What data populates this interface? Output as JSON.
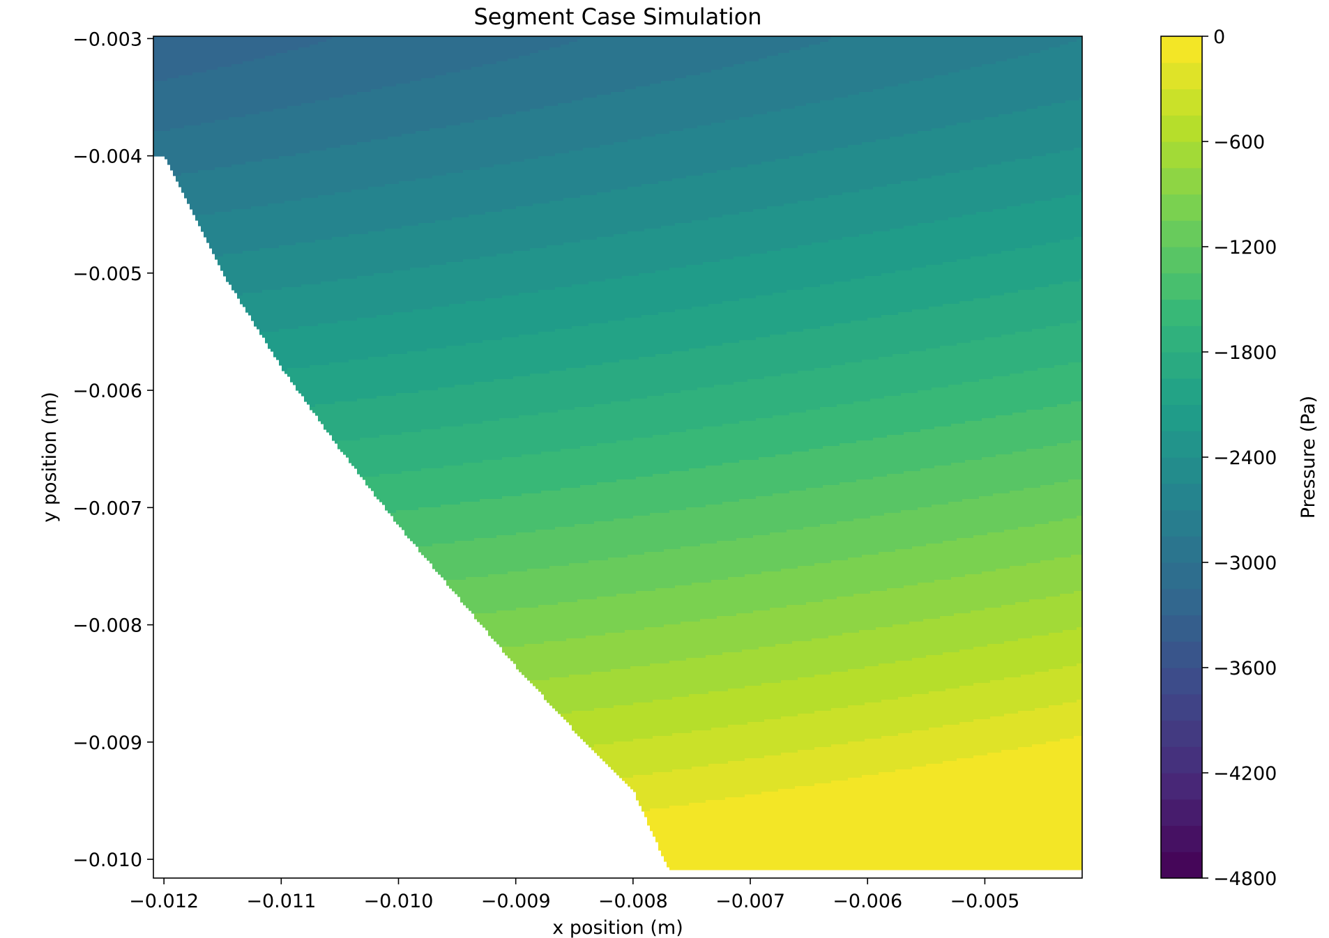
{
  "chart_data": {
    "type": "heatmap",
    "subtype": "filled-contour",
    "title": "Segment Case Simulation",
    "xlabel": "x position (m)",
    "ylabel": "y position (m)",
    "xlim": [
      -0.01209,
      -0.00417
    ],
    "ylim": [
      -0.01016,
      -0.00298
    ],
    "x_ticks": [
      -0.012,
      -0.011,
      -0.01,
      -0.009,
      -0.008,
      -0.007,
      -0.006,
      -0.005
    ],
    "x_tick_labels": [
      "−0.012",
      "−0.011",
      "−0.010",
      "−0.009",
      "−0.008",
      "−0.007",
      "−0.006",
      "−0.005"
    ],
    "y_ticks": [
      -0.003,
      -0.004,
      -0.005,
      -0.006,
      -0.007,
      -0.008,
      -0.009,
      -0.01
    ],
    "y_tick_labels": [
      "−0.003",
      "−0.004",
      "−0.005",
      "−0.006",
      "−0.007",
      "−0.008",
      "−0.009",
      "−0.010"
    ],
    "boundary_left_edge": [
      [
        -0.012,
        -0.004
      ],
      [
        -0.0115,
        -0.005
      ],
      [
        -0.011,
        -0.0058
      ],
      [
        -0.0105,
        -0.0065
      ],
      [
        -0.01,
        -0.00715
      ],
      [
        -0.0095,
        -0.00775
      ],
      [
        -0.009,
        -0.00835
      ],
      [
        -0.0085,
        -0.0089
      ],
      [
        -0.008,
        -0.0094
      ],
      [
        -0.0077,
        -0.01008
      ]
    ],
    "field_samples": [
      {
        "x": -0.012,
        "y": -0.003,
        "pressure": -3250
      },
      {
        "x": -0.00417,
        "y": -0.003,
        "pressure": -2800
      },
      {
        "x": -0.012,
        "y": -0.004,
        "pressure": -2950
      },
      {
        "x": -0.00417,
        "y": -0.0055,
        "pressure": -2150
      },
      {
        "x": -0.0077,
        "y": -0.0098,
        "pressure": -600
      },
      {
        "x": -0.00417,
        "y": -0.0098,
        "pressure": -80
      }
    ],
    "colorbar": {
      "label": "Pressure (Pa)",
      "range": [
        -4800,
        0
      ],
      "level_step": 150,
      "ticks": [
        0,
        -600,
        -1200,
        -1800,
        -2400,
        -3000,
        -3600,
        -4200,
        -4800
      ],
      "tick_labels": [
        "0",
        "−600",
        "−1200",
        "−1800",
        "−2400",
        "−3000",
        "−3600",
        "−4200",
        "−4800"
      ],
      "colormap": "viridis",
      "colormap_stops": [
        "#440154",
        "#482878",
        "#3e4989",
        "#31688e",
        "#26828e",
        "#1f9e89",
        "#35b779",
        "#6ece58",
        "#b5de2b",
        "#fde725"
      ]
    },
    "grid": false
  }
}
